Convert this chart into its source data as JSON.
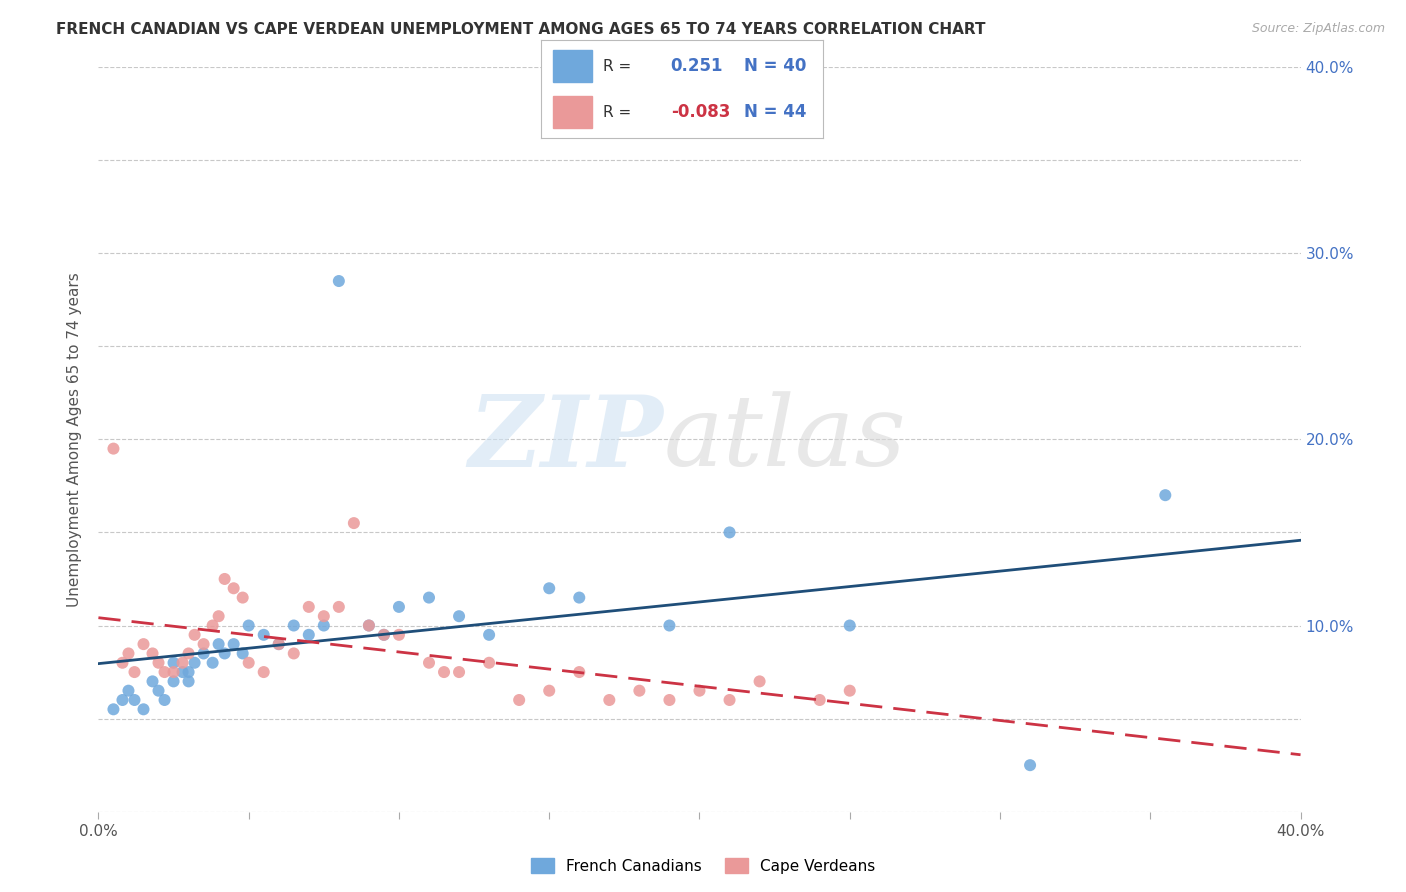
{
  "title": "FRENCH CANADIAN VS CAPE VERDEAN UNEMPLOYMENT AMONG AGES 65 TO 74 YEARS CORRELATION CHART",
  "source": "Source: ZipAtlas.com",
  "ylabel": "Unemployment Among Ages 65 to 74 years",
  "xlim": [
    0.0,
    0.4
  ],
  "ylim": [
    0.0,
    0.4
  ],
  "xtick_positions": [
    0.0,
    0.05,
    0.1,
    0.15,
    0.2,
    0.25,
    0.3,
    0.35,
    0.4
  ],
  "ytick_positions": [
    0.0,
    0.05,
    0.1,
    0.15,
    0.2,
    0.25,
    0.3,
    0.35,
    0.4
  ],
  "ytick_labels_right": [
    "",
    "",
    "10.0%",
    "",
    "20.0%",
    "",
    "30.0%",
    "",
    "40.0%"
  ],
  "french_canadian_color": "#6fa8dc",
  "cape_verdean_color": "#ea9999",
  "fc_line_color": "#1f4e79",
  "cv_line_color": "#cc3344",
  "french_canadian_R": "0.251",
  "french_canadian_N": "40",
  "cape_verdean_R": "-0.083",
  "cape_verdean_N": "44",
  "fc_scatter_x": [
    0.005,
    0.008,
    0.01,
    0.012,
    0.015,
    0.018,
    0.02,
    0.022,
    0.025,
    0.025,
    0.028,
    0.03,
    0.03,
    0.032,
    0.035,
    0.038,
    0.04,
    0.042,
    0.045,
    0.048,
    0.05,
    0.055,
    0.06,
    0.065,
    0.07,
    0.075,
    0.08,
    0.09,
    0.095,
    0.1,
    0.11,
    0.12,
    0.13,
    0.15,
    0.16,
    0.19,
    0.21,
    0.25,
    0.31,
    0.355
  ],
  "fc_scatter_y": [
    0.055,
    0.06,
    0.065,
    0.06,
    0.055,
    0.07,
    0.065,
    0.06,
    0.08,
    0.07,
    0.075,
    0.07,
    0.075,
    0.08,
    0.085,
    0.08,
    0.09,
    0.085,
    0.09,
    0.085,
    0.1,
    0.095,
    0.09,
    0.1,
    0.095,
    0.1,
    0.285,
    0.1,
    0.095,
    0.11,
    0.115,
    0.105,
    0.095,
    0.12,
    0.115,
    0.1,
    0.15,
    0.1,
    0.025,
    0.17
  ],
  "cv_scatter_x": [
    0.005,
    0.008,
    0.01,
    0.012,
    0.015,
    0.018,
    0.02,
    0.022,
    0.025,
    0.028,
    0.03,
    0.032,
    0.035,
    0.038,
    0.04,
    0.042,
    0.045,
    0.048,
    0.05,
    0.055,
    0.06,
    0.065,
    0.07,
    0.075,
    0.08,
    0.085,
    0.09,
    0.095,
    0.1,
    0.11,
    0.115,
    0.12,
    0.13,
    0.14,
    0.15,
    0.16,
    0.17,
    0.18,
    0.19,
    0.2,
    0.21,
    0.22,
    0.24,
    0.25
  ],
  "cv_scatter_y": [
    0.195,
    0.08,
    0.085,
    0.075,
    0.09,
    0.085,
    0.08,
    0.075,
    0.075,
    0.08,
    0.085,
    0.095,
    0.09,
    0.1,
    0.105,
    0.125,
    0.12,
    0.115,
    0.08,
    0.075,
    0.09,
    0.085,
    0.11,
    0.105,
    0.11,
    0.155,
    0.1,
    0.095,
    0.095,
    0.08,
    0.075,
    0.075,
    0.08,
    0.06,
    0.065,
    0.075,
    0.06,
    0.065,
    0.06,
    0.065,
    0.06,
    0.07,
    0.06,
    0.065
  ]
}
